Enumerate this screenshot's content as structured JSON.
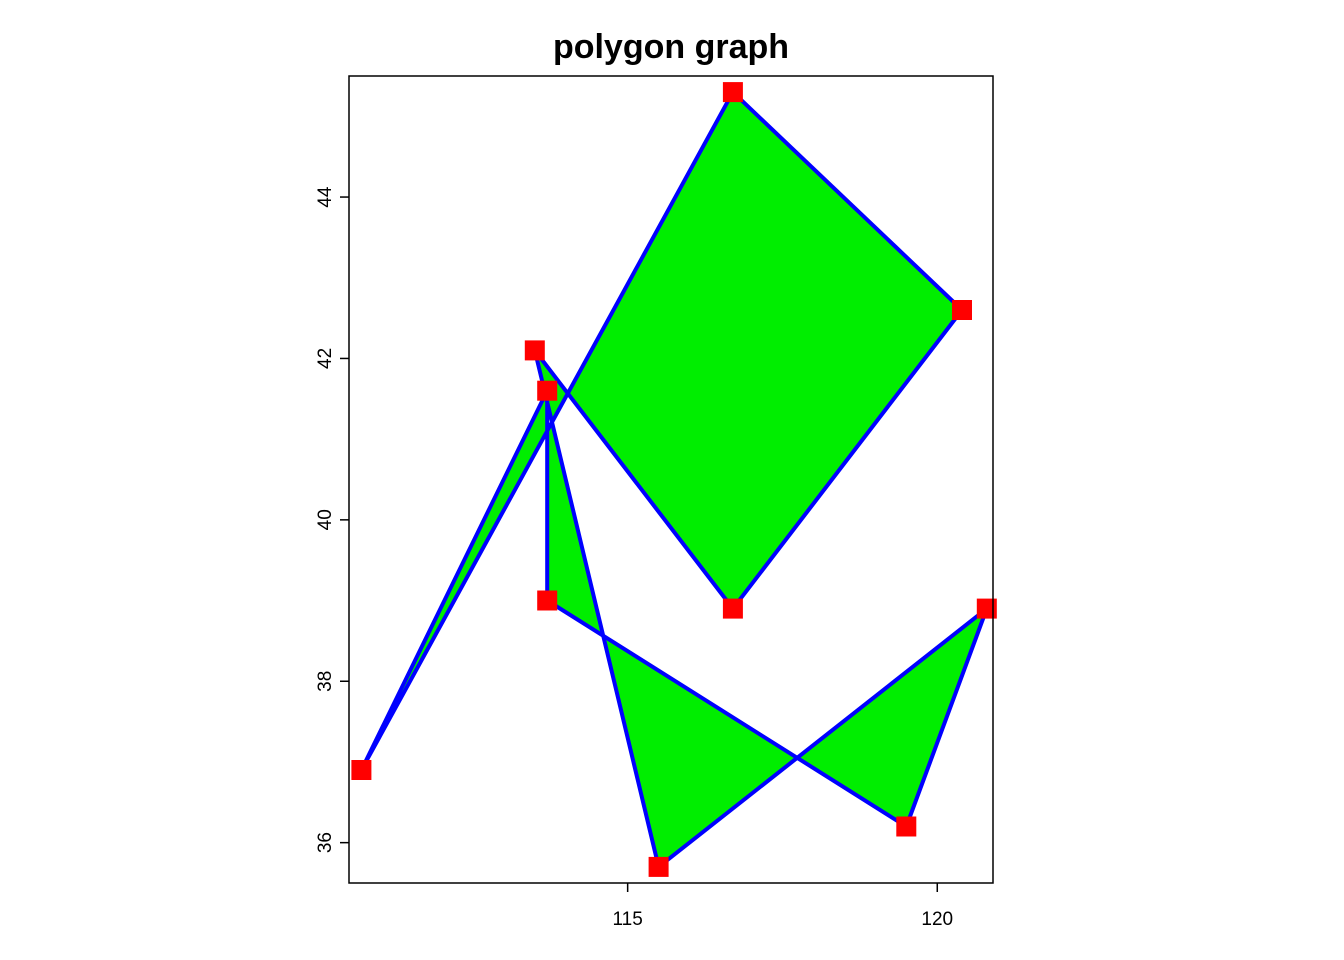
{
  "chart_data": {
    "type": "polygon",
    "title": "polygon graph",
    "xlabel": "",
    "ylabel": "",
    "xlim": [
      110.5,
      120.9
    ],
    "ylim": [
      35.5,
      45.5
    ],
    "x_ticks": [
      115,
      120
    ],
    "y_ticks": [
      36,
      38,
      40,
      42,
      44
    ],
    "x_tick_labels": [
      "115",
      "120"
    ],
    "y_tick_labels": [
      "36",
      "38",
      "40",
      "42",
      "44"
    ],
    "points": [
      {
        "x": 116.7,
        "y": 45.3
      },
      {
        "x": 120.4,
        "y": 42.6
      },
      {
        "x": 116.7,
        "y": 38.9
      },
      {
        "x": 113.5,
        "y": 42.1
      },
      {
        "x": 115.5,
        "y": 35.7
      },
      {
        "x": 120.8,
        "y": 38.9
      },
      {
        "x": 119.5,
        "y": 36.2
      },
      {
        "x": 113.7,
        "y": 39.0
      },
      {
        "x": 113.7,
        "y": 41.6
      },
      {
        "x": 110.7,
        "y": 36.9
      }
    ],
    "fill_color": "#00ee00",
    "line_color": "#0000ff",
    "marker_color": "#ff0000",
    "marker_shape": "square",
    "grid": false,
    "legend": "none"
  }
}
